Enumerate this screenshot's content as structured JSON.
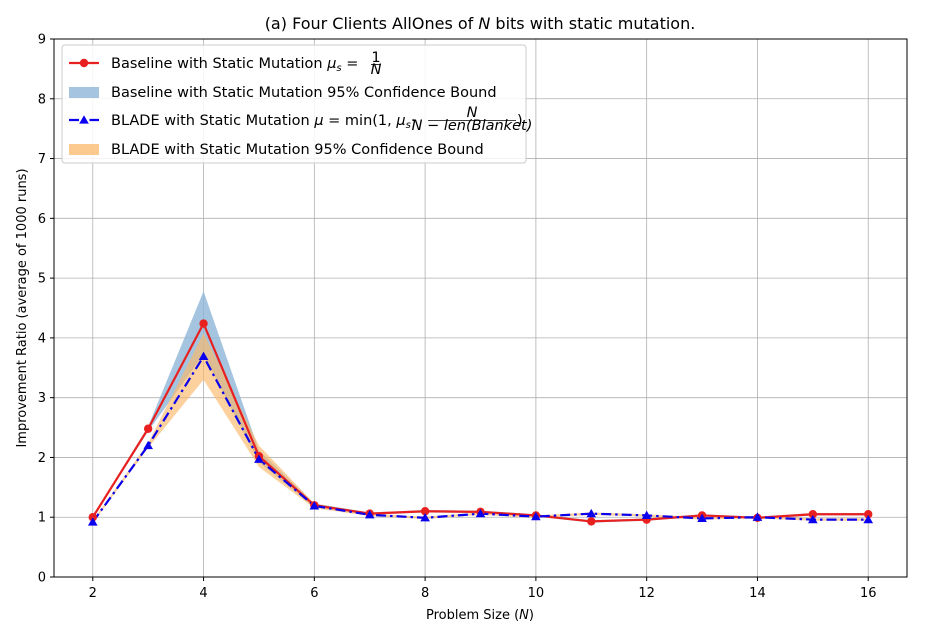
{
  "chart_data": {
    "type": "line",
    "title": "(a) Four Clients AllOnes of N bits with static mutation.",
    "xlabel": "Problem Size (N)",
    "ylabel": "Improvement Ratio (average of 1000 runs)",
    "xlim": [
      1.3,
      16.7
    ],
    "ylim": [
      0,
      9
    ],
    "xticks": [
      2,
      4,
      6,
      8,
      10,
      12,
      14,
      16
    ],
    "yticks": [
      0,
      1,
      2,
      3,
      4,
      5,
      6,
      7,
      8,
      9
    ],
    "grid": true,
    "legend_position": "top-left",
    "x": [
      2,
      3,
      4,
      5,
      6,
      7,
      8,
      9,
      10,
      11,
      12,
      13,
      14,
      15,
      16
    ],
    "series": [
      {
        "name": "Baseline with Static Mutation μs = 1/N",
        "color": "#e8201f",
        "line_style": "solid",
        "marker": "circle",
        "values": [
          1.0,
          2.48,
          4.24,
          2.02,
          1.2,
          1.06,
          1.1,
          1.09,
          1.03,
          0.93,
          0.96,
          1.03,
          0.99,
          1.05,
          1.05
        ]
      },
      {
        "name": "BLADE with Static Mutation μ = min(1, μs · N/(N − len(Blanket)))",
        "color": "#0a00ee",
        "line_style": "dashdot",
        "marker": "triangle",
        "values": [
          0.92,
          2.2,
          3.69,
          1.97,
          1.19,
          1.04,
          0.99,
          1.06,
          1.01,
          1.06,
          1.03,
          0.98,
          1.0,
          0.96,
          0.96
        ]
      }
    ],
    "bands": [
      {
        "name": "Baseline with Static Mutation 95% Confidence Bound",
        "color": "#8fb5d8",
        "lower": [
          0.98,
          2.44,
          3.72,
          1.92,
          1.17,
          1.04,
          1.08,
          1.07,
          1.01,
          0.91,
          0.94,
          1.01,
          0.97,
          1.03,
          1.03
        ],
        "upper": [
          1.02,
          2.52,
          4.78,
          2.12,
          1.23,
          1.08,
          1.12,
          1.11,
          1.05,
          0.95,
          0.98,
          1.05,
          1.01,
          1.07,
          1.07
        ]
      },
      {
        "name": "BLADE with Static Mutation 95% Confidence Bound",
        "color": "#fbb868",
        "lower": [
          0.9,
          2.16,
          3.3,
          1.84,
          1.15,
          1.02,
          0.97,
          1.04,
          0.99,
          1.04,
          1.01,
          0.96,
          0.98,
          0.94,
          0.94
        ],
        "upper": [
          0.94,
          2.24,
          4.08,
          2.2,
          1.23,
          1.06,
          1.01,
          1.08,
          1.03,
          1.08,
          1.05,
          1.0,
          1.02,
          0.98,
          0.98
        ]
      }
    ]
  }
}
